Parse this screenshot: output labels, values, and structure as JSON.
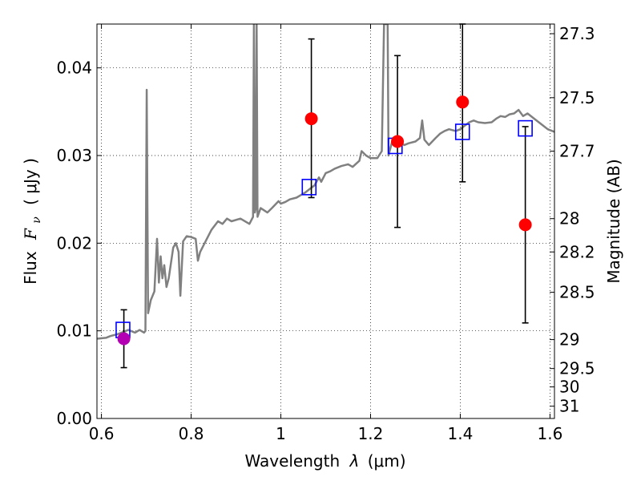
{
  "chart_data": {
    "type": "line",
    "xlabel": "Wavelength",
    "xlabel_symbol": "λ",
    "xlabel_unit": "(μm)",
    "ylabel": "Flux",
    "ylabel_symbol": "F",
    "ylabel_subscript": "ν",
    "ylabel_unit": "( μJy )",
    "y2label": "Magnitude (AB)",
    "xlim": [
      0.59,
      1.61
    ],
    "ylim": [
      0.0,
      0.045
    ],
    "grid": true,
    "x_ticks": [
      0.6,
      0.8,
      1.0,
      1.2,
      1.4,
      1.6
    ],
    "x_tick_labels": [
      "0.6",
      "0.8",
      "1",
      "1.2",
      "1.4",
      "1.6"
    ],
    "y_ticks": [
      0.0,
      0.01,
      0.02,
      0.03,
      0.04
    ],
    "y_tick_labels": [
      "0.00",
      "0.01",
      "0.02",
      "0.03",
      "0.04"
    ],
    "y2_ticks": [
      {
        "label": "27.3",
        "flux": 0.0439
      },
      {
        "label": "27.5",
        "flux": 0.0366
      },
      {
        "label": "27.7",
        "flux": 0.0305
      },
      {
        "label": "28",
        "flux": 0.0228
      },
      {
        "label": "28.2",
        "flux": 0.019
      },
      {
        "label": "28.5",
        "flux": 0.0144
      },
      {
        "label": "29",
        "flux": 0.009
      },
      {
        "label": "29.5",
        "flux": 0.0057
      },
      {
        "label": "30",
        "flux": 0.0036
      },
      {
        "label": "31",
        "flux": 0.0014
      }
    ],
    "series": [
      {
        "type": "line",
        "color": "#808080",
        "points": [
          [
            0.59,
            0.0091
          ],
          [
            0.61,
            0.0092
          ],
          [
            0.62,
            0.0094
          ],
          [
            0.635,
            0.0096
          ],
          [
            0.65,
            0.0099
          ],
          [
            0.66,
            0.0101
          ],
          [
            0.675,
            0.0098
          ],
          [
            0.685,
            0.0101
          ],
          [
            0.695,
            0.0098
          ],
          [
            0.698,
            0.01
          ],
          [
            0.701,
            0.0375
          ],
          [
            0.704,
            0.012
          ],
          [
            0.71,
            0.0135
          ],
          [
            0.718,
            0.0145
          ],
          [
            0.724,
            0.0205
          ],
          [
            0.728,
            0.0155
          ],
          [
            0.732,
            0.0185
          ],
          [
            0.736,
            0.016
          ],
          [
            0.74,
            0.0175
          ],
          [
            0.745,
            0.015
          ],
          [
            0.75,
            0.016
          ],
          [
            0.76,
            0.0195
          ],
          [
            0.766,
            0.02
          ],
          [
            0.772,
            0.019
          ],
          [
            0.776,
            0.014
          ],
          [
            0.782,
            0.0202
          ],
          [
            0.79,
            0.0208
          ],
          [
            0.8,
            0.0207
          ],
          [
            0.81,
            0.0205
          ],
          [
            0.815,
            0.018
          ],
          [
            0.82,
            0.019
          ],
          [
            0.83,
            0.02
          ],
          [
            0.845,
            0.0215
          ],
          [
            0.86,
            0.0225
          ],
          [
            0.87,
            0.0222
          ],
          [
            0.88,
            0.0228
          ],
          [
            0.89,
            0.0225
          ],
          [
            0.91,
            0.0228
          ],
          [
            0.93,
            0.0222
          ],
          [
            0.938,
            0.023
          ],
          [
            0.94,
            0.045
          ],
          [
            0.942,
            0.0235
          ],
          [
            0.944,
            0.024
          ],
          [
            0.946,
            0.045
          ],
          [
            0.948,
            0.023
          ],
          [
            0.955,
            0.024
          ],
          [
            0.97,
            0.0235
          ],
          [
            0.98,
            0.024
          ],
          [
            0.995,
            0.0248
          ],
          [
            1.0,
            0.0245
          ],
          [
            1.01,
            0.0247
          ],
          [
            1.02,
            0.025
          ],
          [
            1.035,
            0.0252
          ],
          [
            1.045,
            0.0255
          ],
          [
            1.055,
            0.0258
          ],
          [
            1.065,
            0.0262
          ],
          [
            1.075,
            0.0266
          ],
          [
            1.085,
            0.0275
          ],
          [
            1.09,
            0.027
          ],
          [
            1.1,
            0.028
          ],
          [
            1.11,
            0.0282
          ],
          [
            1.12,
            0.0285
          ],
          [
            1.135,
            0.0288
          ],
          [
            1.15,
            0.029
          ],
          [
            1.16,
            0.0287
          ],
          [
            1.175,
            0.0294
          ],
          [
            1.18,
            0.0305
          ],
          [
            1.19,
            0.03
          ],
          [
            1.2,
            0.0297
          ],
          [
            1.215,
            0.0297
          ],
          [
            1.225,
            0.0305
          ],
          [
            1.23,
            0.045
          ],
          [
            1.238,
            0.045
          ],
          [
            1.24,
            0.03
          ],
          [
            1.25,
            0.032
          ],
          [
            1.258,
            0.0318
          ],
          [
            1.265,
            0.0315
          ],
          [
            1.275,
            0.0312
          ],
          [
            1.285,
            0.0314
          ],
          [
            1.3,
            0.0316
          ],
          [
            1.31,
            0.032
          ],
          [
            1.315,
            0.034
          ],
          [
            1.32,
            0.0318
          ],
          [
            1.33,
            0.0312
          ],
          [
            1.345,
            0.032
          ],
          [
            1.355,
            0.0325
          ],
          [
            1.365,
            0.0328
          ],
          [
            1.375,
            0.033
          ],
          [
            1.39,
            0.0328
          ],
          [
            1.4,
            0.033
          ],
          [
            1.41,
            0.0334
          ],
          [
            1.42,
            0.0338
          ],
          [
            1.43,
            0.034
          ],
          [
            1.44,
            0.0338
          ],
          [
            1.455,
            0.0337
          ],
          [
            1.47,
            0.0338
          ],
          [
            1.48,
            0.0342
          ],
          [
            1.49,
            0.0345
          ],
          [
            1.5,
            0.0344
          ],
          [
            1.51,
            0.0347
          ],
          [
            1.52,
            0.0348
          ],
          [
            1.53,
            0.0352
          ],
          [
            1.54,
            0.0345
          ],
          [
            1.55,
            0.0348
          ],
          [
            1.565,
            0.0342
          ],
          [
            1.58,
            0.0336
          ],
          [
            1.595,
            0.033
          ],
          [
            1.61,
            0.0327
          ]
        ]
      },
      {
        "type": "scatter",
        "marker": "open-square",
        "color": "#0000ff",
        "points": [
          [
            0.648,
            0.0101
          ],
          [
            1.063,
            0.0264
          ],
          [
            1.255,
            0.0311
          ],
          [
            1.405,
            0.0327
          ],
          [
            1.545,
            0.0331
          ]
        ]
      },
      {
        "type": "scatter",
        "marker": "circle",
        "color": "#ff0000",
        "points": [
          [
            1.068,
            0.0342
          ],
          [
            1.26,
            0.0316
          ],
          [
            1.405,
            0.0361
          ],
          [
            1.545,
            0.0221
          ]
        ],
        "error_bars": [
          [
            0.0252,
            0.0433
          ],
          [
            0.0218,
            0.0414
          ],
          [
            0.027,
            0.045
          ],
          [
            0.0109,
            0.0333
          ]
        ]
      },
      {
        "type": "scatter",
        "marker": "circle",
        "color": "#b300b3",
        "points": [
          [
            0.65,
            0.0091
          ]
        ],
        "error_bars": [
          [
            0.0058,
            0.0124
          ]
        ]
      }
    ]
  }
}
